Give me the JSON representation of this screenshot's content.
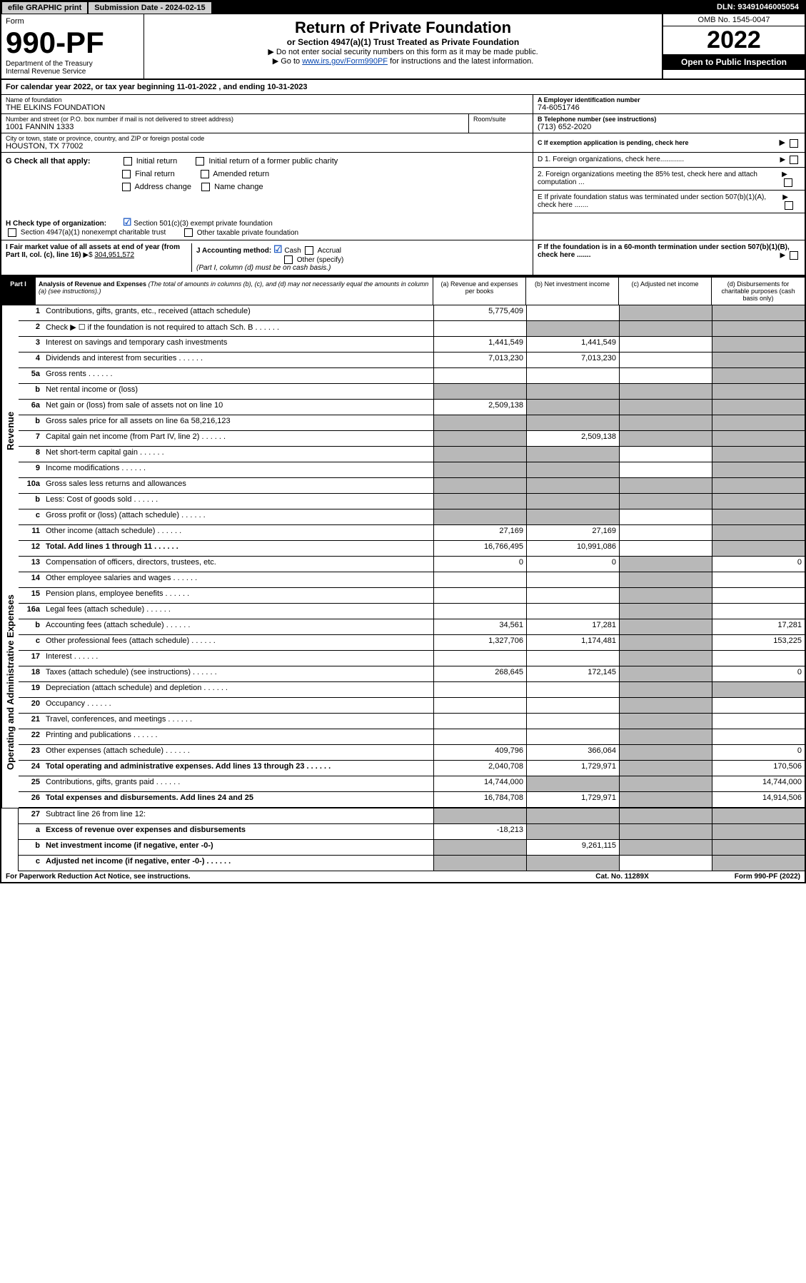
{
  "topbar": {
    "efile": "efile GRAPHIC print",
    "subdate_lbl": "Submission Date - 2024-02-15",
    "dln": "DLN: 93491046005054"
  },
  "header": {
    "form_lbl": "Form",
    "form_no": "990-PF",
    "dept": "Department of the Treasury",
    "irs": "Internal Revenue Service",
    "title": "Return of Private Foundation",
    "subtitle": "or Section 4947(a)(1) Trust Treated as Private Foundation",
    "instr1": "▶ Do not enter social security numbers on this form as it may be made public.",
    "instr2_pre": "▶ Go to ",
    "instr2_link": "www.irs.gov/Form990PF",
    "instr2_post": " for instructions and the latest information.",
    "omb": "OMB No. 1545-0047",
    "year": "2022",
    "inspect": "Open to Public Inspection"
  },
  "calyear": "For calendar year 2022, or tax year beginning 11-01-2022                   , and ending 10-31-2023",
  "ident": {
    "name_lbl": "Name of foundation",
    "name": "THE ELKINS FOUNDATION",
    "ein_lbl": "A Employer identification number",
    "ein": "74-6051746",
    "addr_lbl": "Number and street (or P.O. box number if mail is not delivered to street address)",
    "addr": "1001 FANNIN 1333",
    "room_lbl": "Room/suite",
    "tel_lbl": "B Telephone number (see instructions)",
    "tel": "(713) 652-2020",
    "city_lbl": "City or town, state or province, country, and ZIP or foreign postal code",
    "city": "HOUSTON, TX  77002",
    "c_lbl": "C If exemption application is pending, check here"
  },
  "g": {
    "lbl": "G Check all that apply:",
    "o1": "Initial return",
    "o2": "Initial return of a former public charity",
    "o3": "Final return",
    "o4": "Amended return",
    "o5": "Address change",
    "o6": "Name change",
    "d1": "D 1. Foreign organizations, check here............",
    "d2": "2. Foreign organizations meeting the 85% test, check here and attach computation ...",
    "e": "E If private foundation status was terminated under section 507(b)(1)(A), check here .......",
    "f": "F If the foundation is in a 60-month termination under section 507(b)(1)(B), check here ......."
  },
  "h": {
    "lbl": "H Check type of organization:",
    "o1": "Section 501(c)(3) exempt private foundation",
    "o2": "Section 4947(a)(1) nonexempt charitable trust",
    "o3": "Other taxable private foundation"
  },
  "i": {
    "lbl": "I Fair market value of all assets at end of year (from Part II, col. (c), line 16)",
    "val": "304,951,572"
  },
  "j": {
    "lbl": "J Accounting method:",
    "o1": "Cash",
    "o2": "Accrual",
    "o3": "Other (specify)",
    "note": "(Part I, column (d) must be on cash basis.)"
  },
  "part1": {
    "lbl": "Part I",
    "title": "Analysis of Revenue and Expenses",
    "desc": "(The total of amounts in columns (b), (c), and (d) may not necessarily equal the amounts in column (a) (see instructions).)",
    "col_a": "(a) Revenue and expenses per books",
    "col_b": "(b) Net investment income",
    "col_c": "(c) Adjusted net income",
    "col_d": "(d) Disbursements for charitable purposes (cash basis only)"
  },
  "sidelabels": {
    "revenue": "Revenue",
    "expenses": "Operating and Administrative Expenses"
  },
  "rows": [
    {
      "n": "1",
      "d": "Contributions, gifts, grants, etc., received (attach schedule)",
      "a": "5,775,409",
      "b": "",
      "c": "shade",
      "dd": "shade"
    },
    {
      "n": "2",
      "d": "Check ▶ ☐ if the foundation is not required to attach Sch. B",
      "a": "",
      "b": "shade",
      "c": "shade",
      "dd": "shade",
      "bold": false,
      "dots": true
    },
    {
      "n": "3",
      "d": "Interest on savings and temporary cash investments",
      "a": "1,441,549",
      "b": "1,441,549",
      "c": "",
      "dd": "shade"
    },
    {
      "n": "4",
      "d": "Dividends and interest from securities",
      "a": "7,013,230",
      "b": "7,013,230",
      "c": "",
      "dd": "shade",
      "dots": true
    },
    {
      "n": "5a",
      "d": "Gross rents",
      "a": "",
      "b": "",
      "c": "",
      "dd": "shade",
      "dots": true
    },
    {
      "n": "b",
      "d": "Net rental income or (loss)",
      "a": "shade",
      "b": "shade",
      "c": "shade",
      "dd": "shade"
    },
    {
      "n": "6a",
      "d": "Net gain or (loss) from sale of assets not on line 10",
      "a": "2,509,138",
      "b": "shade",
      "c": "shade",
      "dd": "shade"
    },
    {
      "n": "b",
      "d": "Gross sales price for all assets on line 6a         58,216,123",
      "a": "shade",
      "b": "shade",
      "c": "shade",
      "dd": "shade"
    },
    {
      "n": "7",
      "d": "Capital gain net income (from Part IV, line 2)",
      "a": "shade",
      "b": "2,509,138",
      "c": "shade",
      "dd": "shade",
      "dots": true
    },
    {
      "n": "8",
      "d": "Net short-term capital gain",
      "a": "shade",
      "b": "shade",
      "c": "",
      "dd": "shade",
      "dots": true
    },
    {
      "n": "9",
      "d": "Income modifications",
      "a": "shade",
      "b": "shade",
      "c": "",
      "dd": "shade",
      "dots": true
    },
    {
      "n": "10a",
      "d": "Gross sales less returns and allowances",
      "a": "shade",
      "b": "shade",
      "c": "shade",
      "dd": "shade"
    },
    {
      "n": "b",
      "d": "Less: Cost of goods sold",
      "a": "shade",
      "b": "shade",
      "c": "shade",
      "dd": "shade",
      "dots": true
    },
    {
      "n": "c",
      "d": "Gross profit or (loss) (attach schedule)",
      "a": "shade",
      "b": "shade",
      "c": "",
      "dd": "shade",
      "dots": true
    },
    {
      "n": "11",
      "d": "Other income (attach schedule)",
      "a": "27,169",
      "b": "27,169",
      "c": "",
      "dd": "shade",
      "dots": true
    },
    {
      "n": "12",
      "d": "Total. Add lines 1 through 11",
      "a": "16,766,495",
      "b": "10,991,086",
      "c": "",
      "dd": "shade",
      "bold": true,
      "dots": true
    }
  ],
  "exp_rows": [
    {
      "n": "13",
      "d": "Compensation of officers, directors, trustees, etc.",
      "a": "0",
      "b": "0",
      "c": "shade",
      "dd": "0"
    },
    {
      "n": "14",
      "d": "Other employee salaries and wages",
      "a": "",
      "b": "",
      "c": "shade",
      "dd": "",
      "dots": true
    },
    {
      "n": "15",
      "d": "Pension plans, employee benefits",
      "a": "",
      "b": "",
      "c": "shade",
      "dd": "",
      "dots": true
    },
    {
      "n": "16a",
      "d": "Legal fees (attach schedule)",
      "a": "",
      "b": "",
      "c": "shade",
      "dd": "",
      "dots": true
    },
    {
      "n": "b",
      "d": "Accounting fees (attach schedule)",
      "a": "34,561",
      "b": "17,281",
      "c": "shade",
      "dd": "17,281",
      "dots": true
    },
    {
      "n": "c",
      "d": "Other professional fees (attach schedule)",
      "a": "1,327,706",
      "b": "1,174,481",
      "c": "shade",
      "dd": "153,225",
      "dots": true
    },
    {
      "n": "17",
      "d": "Interest",
      "a": "",
      "b": "",
      "c": "shade",
      "dd": "",
      "dots": true
    },
    {
      "n": "18",
      "d": "Taxes (attach schedule) (see instructions)",
      "a": "268,645",
      "b": "172,145",
      "c": "shade",
      "dd": "0",
      "dots": true
    },
    {
      "n": "19",
      "d": "Depreciation (attach schedule) and depletion",
      "a": "",
      "b": "",
      "c": "shade",
      "dd": "shade",
      "dots": true
    },
    {
      "n": "20",
      "d": "Occupancy",
      "a": "",
      "b": "",
      "c": "shade",
      "dd": "",
      "dots": true
    },
    {
      "n": "21",
      "d": "Travel, conferences, and meetings",
      "a": "",
      "b": "",
      "c": "shade",
      "dd": "",
      "dots": true
    },
    {
      "n": "22",
      "d": "Printing and publications",
      "a": "",
      "b": "",
      "c": "shade",
      "dd": "",
      "dots": true
    },
    {
      "n": "23",
      "d": "Other expenses (attach schedule)",
      "a": "409,796",
      "b": "366,064",
      "c": "shade",
      "dd": "0",
      "dots": true
    },
    {
      "n": "24",
      "d": "Total operating and administrative expenses. Add lines 13 through 23",
      "a": "2,040,708",
      "b": "1,729,971",
      "c": "shade",
      "dd": "170,506",
      "bold": true,
      "dots": true
    },
    {
      "n": "25",
      "d": "Contributions, gifts, grants paid",
      "a": "14,744,000",
      "b": "shade",
      "c": "shade",
      "dd": "14,744,000",
      "dots": true
    },
    {
      "n": "26",
      "d": "Total expenses and disbursements. Add lines 24 and 25",
      "a": "16,784,708",
      "b": "1,729,971",
      "c": "shade",
      "dd": "14,914,506",
      "bold": true
    }
  ],
  "bottom_rows": [
    {
      "n": "27",
      "d": "Subtract line 26 from line 12:",
      "a": "shade",
      "b": "shade",
      "c": "shade",
      "dd": "shade"
    },
    {
      "n": "a",
      "d": "Excess of revenue over expenses and disbursements",
      "a": "-18,213",
      "b": "shade",
      "c": "shade",
      "dd": "shade",
      "bold": true
    },
    {
      "n": "b",
      "d": "Net investment income (if negative, enter -0-)",
      "a": "shade",
      "b": "9,261,115",
      "c": "shade",
      "dd": "shade",
      "bold": true
    },
    {
      "n": "c",
      "d": "Adjusted net income (if negative, enter -0-)",
      "a": "shade",
      "b": "shade",
      "c": "",
      "dd": "shade",
      "bold": true,
      "dots": true
    }
  ],
  "footer": {
    "left": "For Paperwork Reduction Act Notice, see instructions.",
    "mid": "Cat. No. 11289X",
    "right": "Form 990-PF (2022)"
  }
}
